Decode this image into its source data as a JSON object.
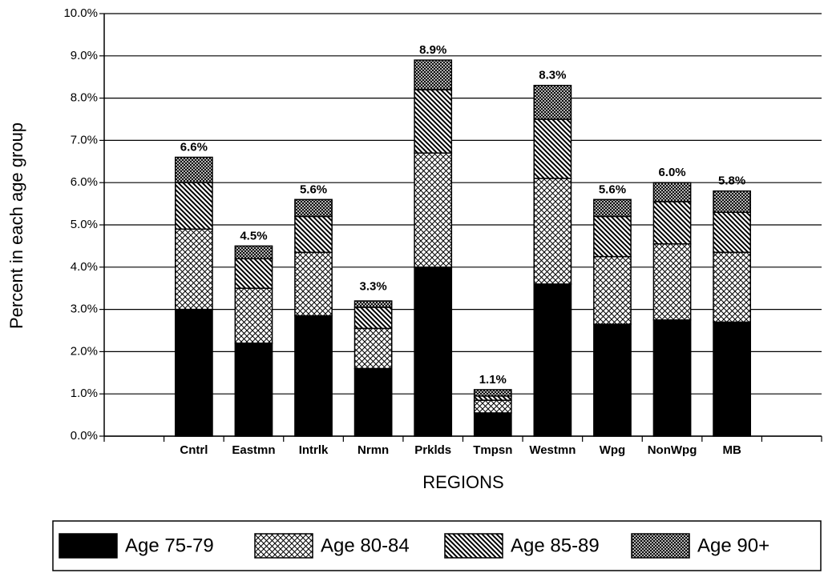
{
  "chart_data": {
    "type": "stacked-bar",
    "ylabel": "Percent in each age group",
    "xlabel": "REGIONS",
    "categories": [
      null,
      "Cntrl",
      "Eastmn",
      "Intrlk",
      "Nrmn",
      "Prklds",
      "Tmpsn",
      "Westmn",
      "Wpg",
      "NonWpg",
      "MB",
      null
    ],
    "series": [
      {
        "name": "Age 75-79",
        "color": "#000000",
        "pattern": "solid",
        "values": [
          null,
          3.0,
          2.2,
          2.85,
          1.6,
          4.0,
          0.55,
          3.6,
          2.65,
          2.75,
          2.7,
          null
        ]
      },
      {
        "name": "Age 80-84",
        "color": "#000000",
        "pattern": "crosshatch",
        "values": [
          null,
          1.9,
          1.3,
          1.5,
          0.95,
          2.7,
          0.3,
          2.5,
          1.6,
          1.8,
          1.65,
          null
        ]
      },
      {
        "name": "Age 85-89",
        "color": "#000000",
        "pattern": "diagonal",
        "values": [
          null,
          1.1,
          0.7,
          0.85,
          0.5,
          1.5,
          0.1,
          1.4,
          0.95,
          1.0,
          0.95,
          null
        ]
      },
      {
        "name": "Age 90+",
        "color": "#000000",
        "pattern": "dense-crosshatch",
        "values": [
          null,
          0.6,
          0.3,
          0.4,
          0.15,
          0.7,
          0.15,
          0.8,
          0.4,
          0.45,
          0.5,
          null
        ]
      }
    ],
    "totals": [
      null,
      6.6,
      4.5,
      5.6,
      3.3,
      8.9,
      1.1,
      8.3,
      5.6,
      6.0,
      5.8,
      null
    ],
    "total_labels": [
      null,
      "6.6%",
      "4.5%",
      "5.6%",
      "3.3%",
      "8.9%",
      "1.1%",
      "8.3%",
      "5.6%",
      "6.0%",
      "5.8%",
      null
    ],
    "ylim": [
      0,
      10
    ],
    "yticks": [
      {
        "value": 0,
        "label": "0.0%"
      },
      {
        "value": 1,
        "label": "1.0%"
      },
      {
        "value": 2,
        "label": "2.0%"
      },
      {
        "value": 3,
        "label": "3.0%"
      },
      {
        "value": 4,
        "label": "4.0%"
      },
      {
        "value": 5,
        "label": "5.0%"
      },
      {
        "value": 6,
        "label": "6.0%"
      },
      {
        "value": 7,
        "label": "7.0%"
      },
      {
        "value": 8,
        "label": "8.0%"
      },
      {
        "value": 9,
        "label": "9.0%"
      },
      {
        "value": 10,
        "label": "10.0%"
      }
    ],
    "grid": true,
    "legend": "bottom"
  }
}
